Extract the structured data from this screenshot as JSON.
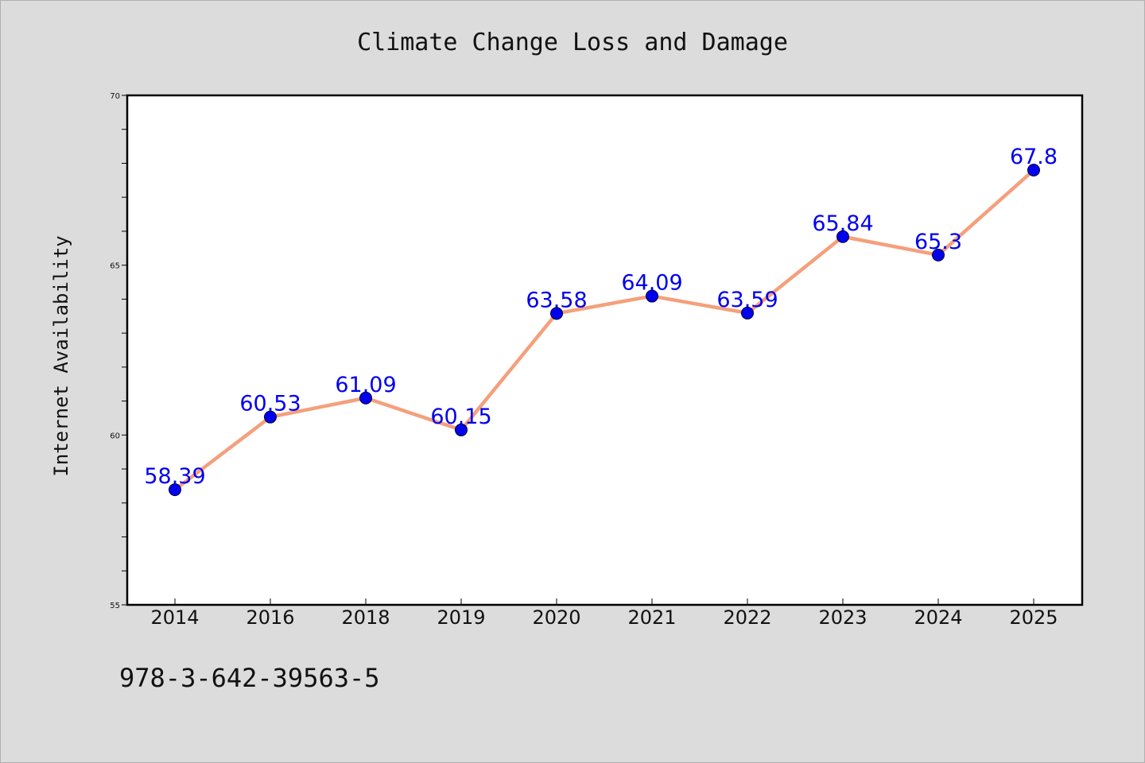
{
  "chart_data": {
    "type": "line",
    "title": "Climate Change Loss and Damage",
    "ylabel": "Internet Availability",
    "xlabel": "",
    "categories": [
      "2014",
      "2016",
      "2018",
      "2019",
      "2020",
      "2021",
      "2022",
      "2023",
      "2024",
      "2025"
    ],
    "series": [
      {
        "values": [
          58.39,
          60.53,
          61.09,
          60.15,
          63.58,
          64.09,
          63.59,
          65.84,
          65.3,
          67.8
        ],
        "labels": [
          "58.39",
          "60.53",
          "61.09",
          "60.15",
          "63.58",
          "64.09",
          "63.59",
          "65.84",
          "65.3",
          "67.8"
        ],
        "line_color": "#f4a07c",
        "marker_color": "#0000ee",
        "label_color": "#0000ee"
      }
    ],
    "ylim": [
      55,
      70
    ],
    "y_major_ticks": [
      55,
      60,
      65,
      70
    ],
    "y_tick_labels": [
      "55",
      "60",
      "65",
      "70"
    ],
    "y_minor_step": 1,
    "grid": false,
    "legend": "none"
  },
  "footnote": "978-3-642-39563-5"
}
